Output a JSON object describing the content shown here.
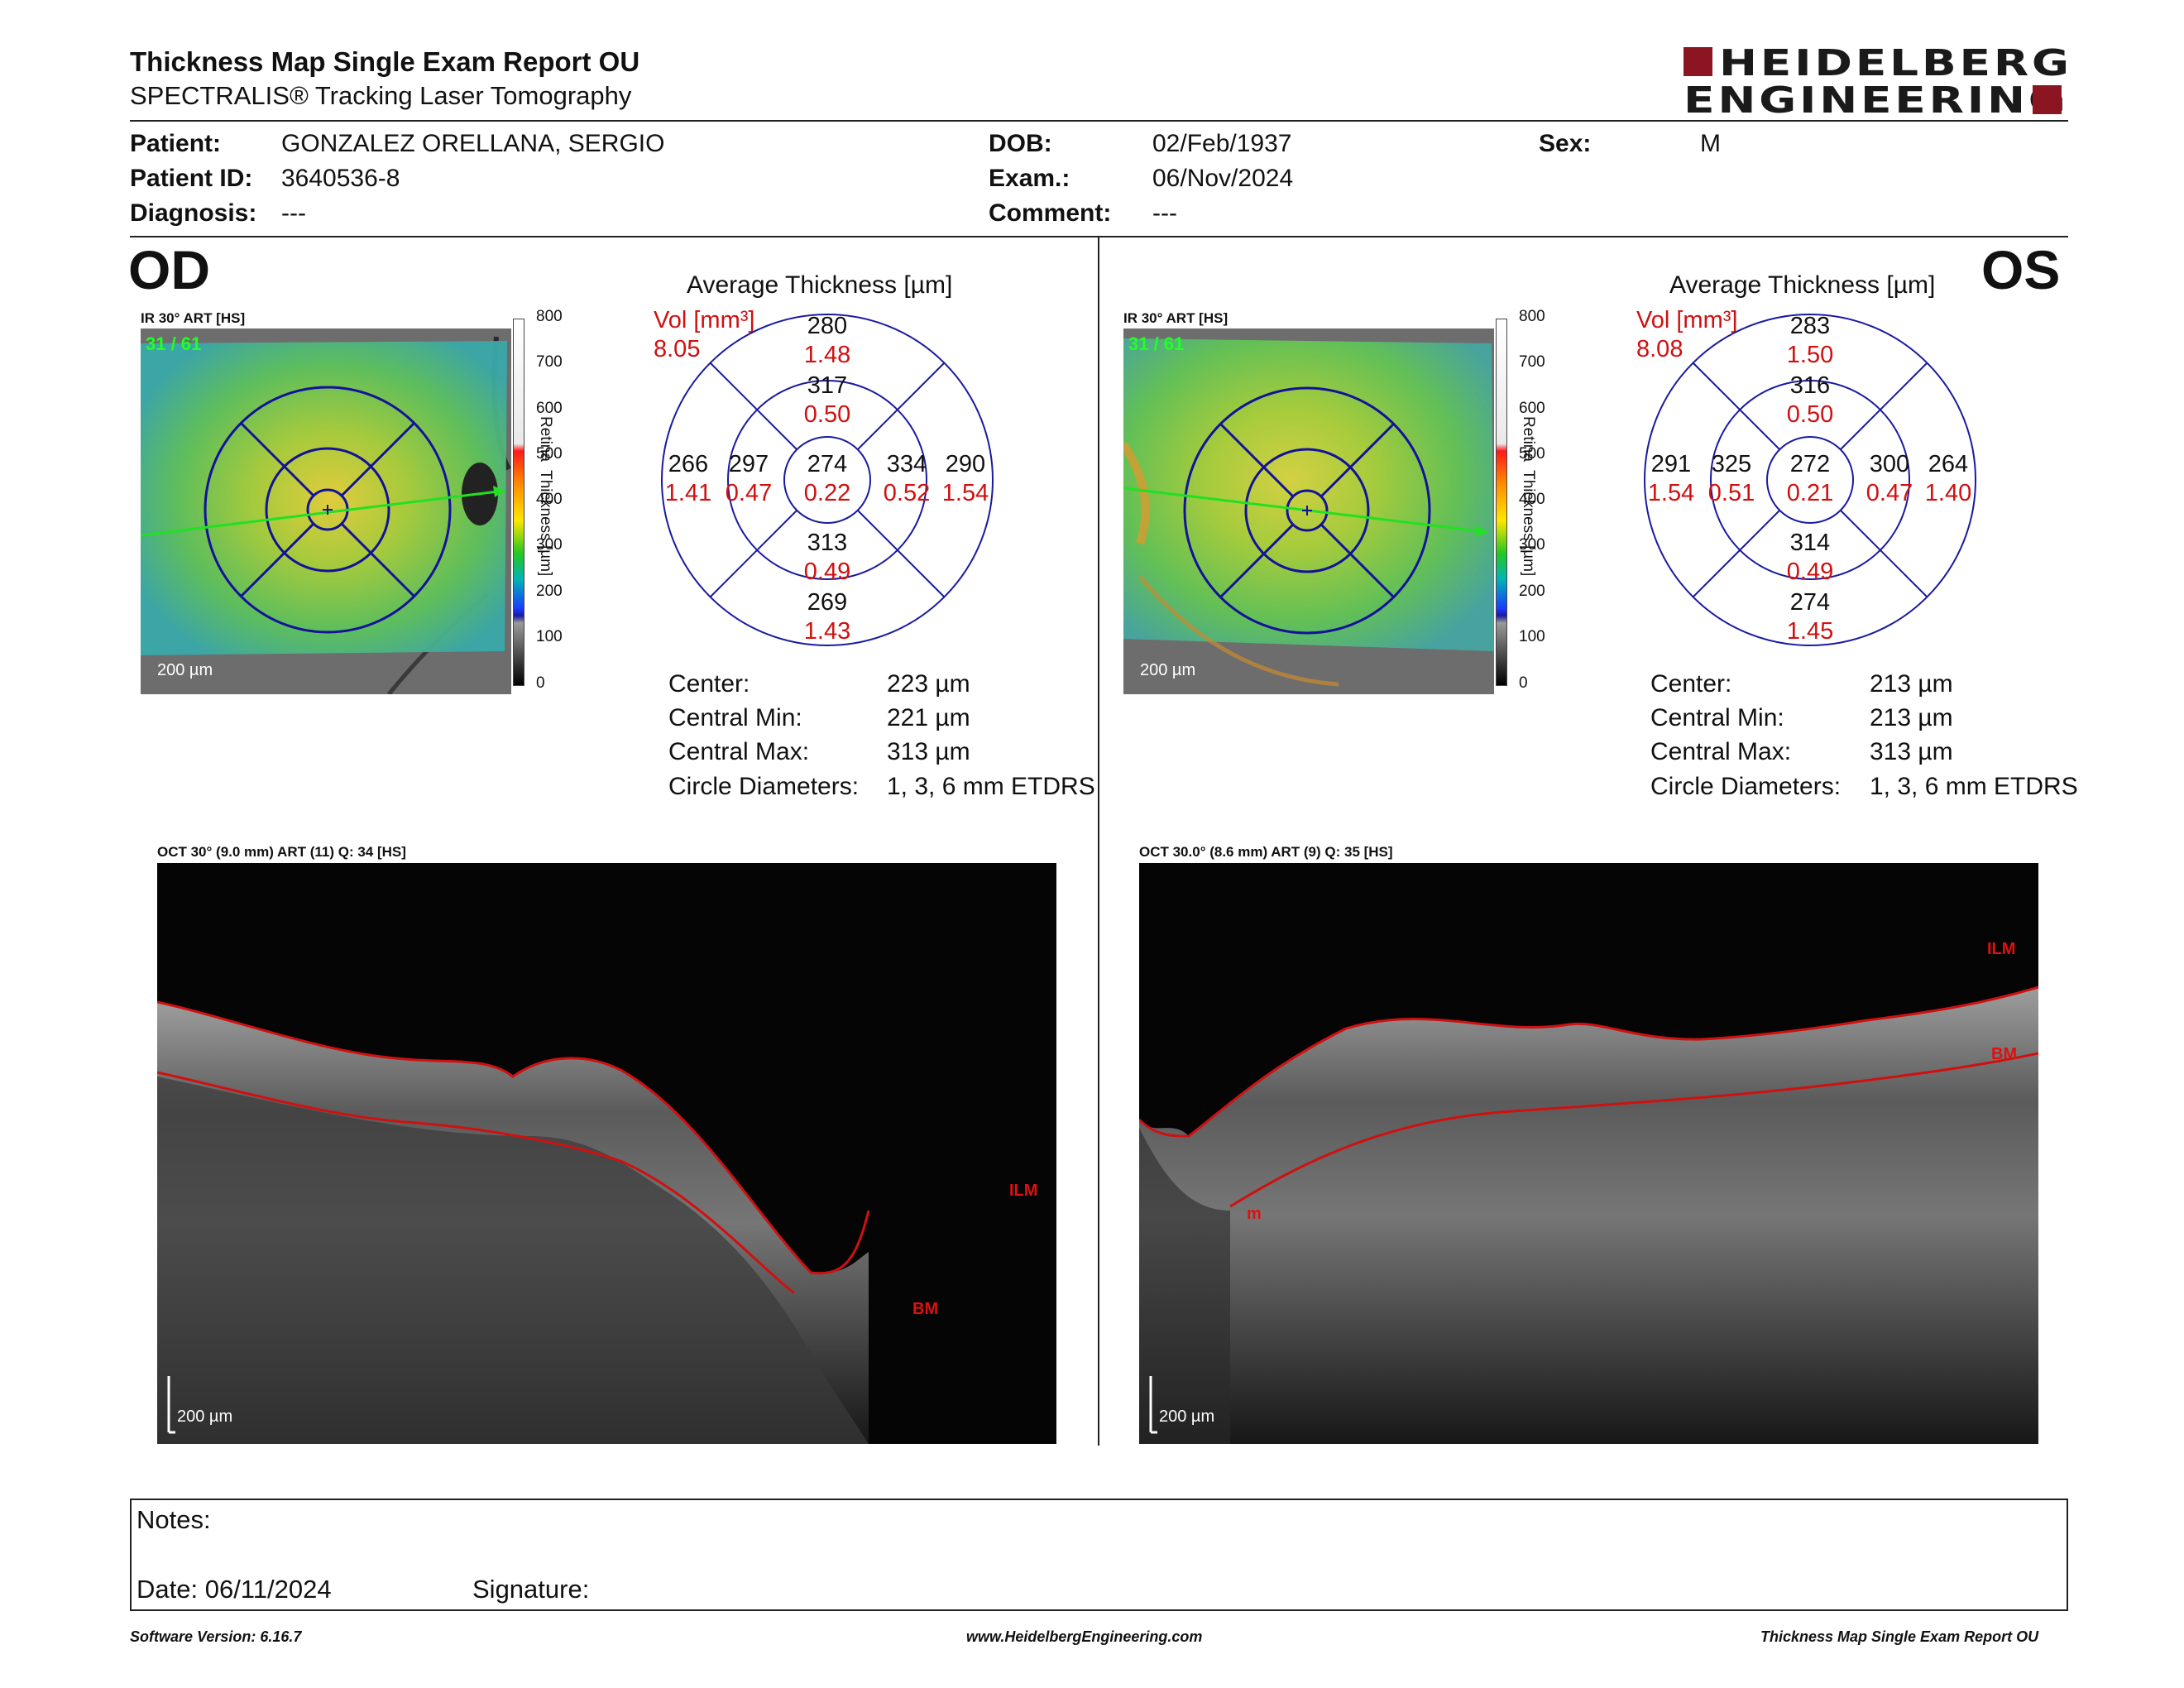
{
  "header": {
    "title": "Thickness Map Single Exam Report OU",
    "subtitle": "SPECTRALIS® Tracking Laser Tomography",
    "logo_line1": "HEIDELBERG",
    "logo_line2": "ENGINEERING"
  },
  "patient": {
    "patient_label": "Patient:",
    "patient_value": "GONZALEZ ORELLANA, SERGIO",
    "id_label": "Patient ID:",
    "id_value": "3640536-8",
    "diagnosis_label": "Diagnosis:",
    "diagnosis_value": "---",
    "dob_label": "DOB:",
    "dob_value": "02/Feb/1937",
    "exam_label": "Exam.:",
    "exam_value": "06/Nov/2024",
    "comment_label": "Comment:",
    "comment_value": "---",
    "sex_label": "Sex:",
    "sex_value": "M"
  },
  "od": {
    "eye": "OD",
    "map_header": "IR 30° ART [HS]",
    "map_counter": "31 / 61",
    "map_scale": "200 µm",
    "color_scale_label": "Retina  Thickness [µm]",
    "color_scale_ticks": [
      "800",
      "700",
      "600",
      "500",
      "400",
      "300",
      "200",
      "100",
      "0"
    ],
    "avg_title": "Average Thickness [µm]",
    "vol_label": "Vol [mm³]",
    "vol_total": "8.05",
    "etdrs": {
      "outer_sup": {
        "t": "280",
        "v": "1.48"
      },
      "inner_sup": {
        "t": "317",
        "v": "0.50"
      },
      "outer_left": {
        "t": "266",
        "v": "1.41"
      },
      "inner_left": {
        "t": "297",
        "v": "0.47"
      },
      "center": {
        "t": "274",
        "v": "0.22"
      },
      "inner_right": {
        "t": "334",
        "v": "0.52"
      },
      "outer_right": {
        "t": "290",
        "v": "1.54"
      },
      "inner_inf": {
        "t": "313",
        "v": "0.49"
      },
      "outer_inf": {
        "t": "269",
        "v": "1.43"
      }
    },
    "stats": [
      {
        "label": "Center:",
        "value": "223 µm"
      },
      {
        "label": "Central Min:",
        "value": "221 µm"
      },
      {
        "label": "Central Max:",
        "value": "313 µm"
      },
      {
        "label": "Circle Diameters:",
        "value": "1, 3, 6 mm ETDRS"
      }
    ],
    "oct_header": "OCT 30° (9.0 mm) ART (11) Q: 34 [HS]",
    "oct_scale": "200 µm",
    "oct_labels": {
      "ilm": "ILM",
      "bm": "BM"
    }
  },
  "os": {
    "eye": "OS",
    "map_header": "IR 30° ART [HS]",
    "map_counter": "31 / 61",
    "map_scale": "200 µm",
    "color_scale_label": "Retina  Thickness [µm]",
    "color_scale_ticks": [
      "800",
      "700",
      "600",
      "500",
      "400",
      "300",
      "200",
      "100",
      "0"
    ],
    "avg_title": "Average Thickness [µm]",
    "vol_label": "Vol [mm³]",
    "vol_total": "8.08",
    "etdrs": {
      "outer_sup": {
        "t": "283",
        "v": "1.50"
      },
      "inner_sup": {
        "t": "316",
        "v": "0.50"
      },
      "outer_left": {
        "t": "291",
        "v": "1.54"
      },
      "inner_left": {
        "t": "325",
        "v": "0.51"
      },
      "center": {
        "t": "272",
        "v": "0.21"
      },
      "inner_right": {
        "t": "300",
        "v": "0.47"
      },
      "outer_right": {
        "t": "264",
        "v": "1.40"
      },
      "inner_inf": {
        "t": "314",
        "v": "0.49"
      },
      "outer_inf": {
        "t": "274",
        "v": "1.45"
      }
    },
    "stats": [
      {
        "label": "Center:",
        "value": "213 µm"
      },
      {
        "label": "Central Min:",
        "value": "213 µm"
      },
      {
        "label": "Central Max:",
        "value": "313 µm"
      },
      {
        "label": "Circle Diameters:",
        "value": "1, 3, 6 mm ETDRS"
      }
    ],
    "oct_header": "OCT 30.0° (8.6 mm) ART (9) Q: 35 [HS]",
    "oct_scale": "200 µm",
    "oct_labels": {
      "ilm": "ILM",
      "bm": "BM",
      "m": "m"
    }
  },
  "notes": {
    "notes_label": "Notes:",
    "date_label": "Date: 06/11/2024",
    "signature_label": "Signature:"
  },
  "footer": {
    "software": "Software Version: 6.16.7",
    "website": "www.HeidelbergEngineering.com",
    "report": "Thickness Map Single Exam Report OU"
  },
  "colors": {
    "accent_red": "#d01010",
    "logo_red": "#8c1522",
    "etdrs_blue": "#1a1aa0"
  }
}
